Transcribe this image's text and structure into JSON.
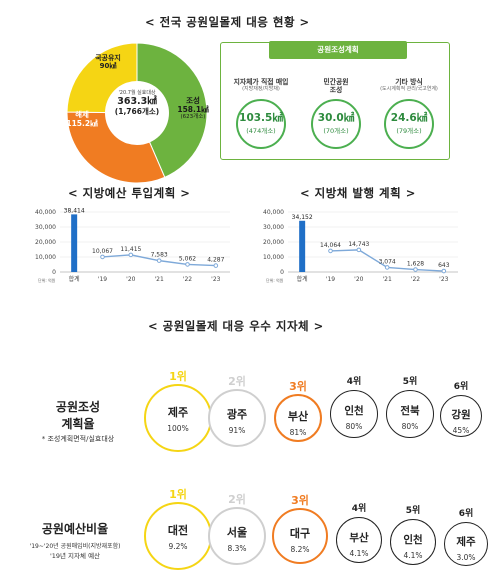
{
  "colors": {
    "green": "#6db33f",
    "orange": "#f07c22",
    "yellow": "#f5d514",
    "gold": "#f5a623",
    "gray": "#cfcfcf",
    "bar_blue": "#1f6fc7",
    "line_blue": "#7ea9d9"
  },
  "national": {
    "title": "< 전국 공원일몰제 대응 현황 >",
    "donut": {
      "segments": [
        {
          "name": "조성",
          "value": 158.1
        },
        {
          "name": "해제",
          "value": 115.2
        },
        {
          "name": "국공유지",
          "value": 90.0
        }
      ],
      "labels": {
        "jo_name": "조성",
        "jo_value": "158.1㎢",
        "jo_count": "(623개소)",
        "hae_name": "해제",
        "hae_value": "115.2㎢",
        "guk_name": "국공유지",
        "guk_value": "90㎢"
      },
      "center": {
        "line1": "'20.7월 실효대상",
        "line2": "363.3㎢",
        "line3": "(1,766개소)"
      }
    },
    "green_box": {
      "header": "공원조성계획",
      "cols": [
        {
          "title": "지자체가 직접 매입",
          "sub": "(지방재정/지방채)",
          "value": "103.5㎢",
          "count": "(474개소)"
        },
        {
          "title": "민간공원\n조성",
          "sub": "",
          "value": "30.0㎢",
          "count": "(70개소)"
        },
        {
          "title": "기타 방식",
          "sub": "(도시계획적 관리/국고연계)",
          "value": "24.6㎢",
          "count": "(79개소)"
        }
      ]
    }
  },
  "budget_chart": {
    "title": "< 지방예산 투입계획 >",
    "unit": "단위: 억원"
  },
  "bond_chart": {
    "title": "< 지방채 발행 계획 >",
    "unit": "단위: 억원"
  },
  "chart_data": [
    {
      "type": "bar",
      "title": "< 지방예산 투입계획 >",
      "ylim": [
        0,
        40000
      ],
      "yticks": [
        "0",
        "10,000",
        "20,000",
        "30,000",
        "40,000"
      ],
      "bar": {
        "category": "합계",
        "value": 38414,
        "label": "38,414"
      },
      "line": {
        "categories": [
          "'19",
          "'20",
          "'21",
          "'22",
          "'23"
        ],
        "values": [
          10067,
          11415,
          7583,
          5062,
          4287
        ],
        "labels": [
          "10,067",
          "11,415",
          "7,583",
          "5,062",
          "4,287"
        ]
      }
    },
    {
      "type": "bar",
      "title": "< 지방채 발행 계획 >",
      "ylim": [
        0,
        40000
      ],
      "yticks": [
        "0",
        "10,000",
        "20,000",
        "30,000",
        "40,000"
      ],
      "bar": {
        "category": "합계",
        "value": 34152,
        "label": "34,152"
      },
      "line": {
        "categories": [
          "'19",
          "'20",
          "'21",
          "'22",
          "'23"
        ],
        "values": [
          14064,
          14743,
          3074,
          1628,
          643
        ],
        "labels": [
          "14,064",
          "14,743",
          "3,074",
          "1,628",
          "643"
        ]
      }
    }
  ],
  "rankings": {
    "title": "< 공원일몰제 대응 우수 지자체 >",
    "row1": {
      "label1": "공원조성",
      "label2": "계획율",
      "note": "* 조성계획면적/실효대상",
      "items": [
        {
          "rank": "1위",
          "name": "제주",
          "value": "100%"
        },
        {
          "rank": "2위",
          "name": "광주",
          "value": "91%"
        },
        {
          "rank": "3위",
          "name": "부산",
          "value": "81%"
        },
        {
          "rank": "4위",
          "name": "인천",
          "value": "80%"
        },
        {
          "rank": "5위",
          "name": "전북",
          "value": "80%"
        },
        {
          "rank": "6위",
          "name": "강원",
          "value": "45%"
        }
      ]
    },
    "row2": {
      "label1": "공원예산비율",
      "note1": "'19~'20년 공원매입비(지방재포함)",
      "note2": "'19년 지자체 예산",
      "items": [
        {
          "rank": "1위",
          "name": "대전",
          "value": "9.2%"
        },
        {
          "rank": "2위",
          "name": "서울",
          "value": "8.3%"
        },
        {
          "rank": "3위",
          "name": "대구",
          "value": "8.2%"
        },
        {
          "rank": "4위",
          "name": "부산",
          "value": "4.1%"
        },
        {
          "rank": "5위",
          "name": "인천",
          "value": "4.1%"
        },
        {
          "rank": "6위",
          "name": "제주",
          "value": "3.0%"
        }
      ]
    }
  }
}
